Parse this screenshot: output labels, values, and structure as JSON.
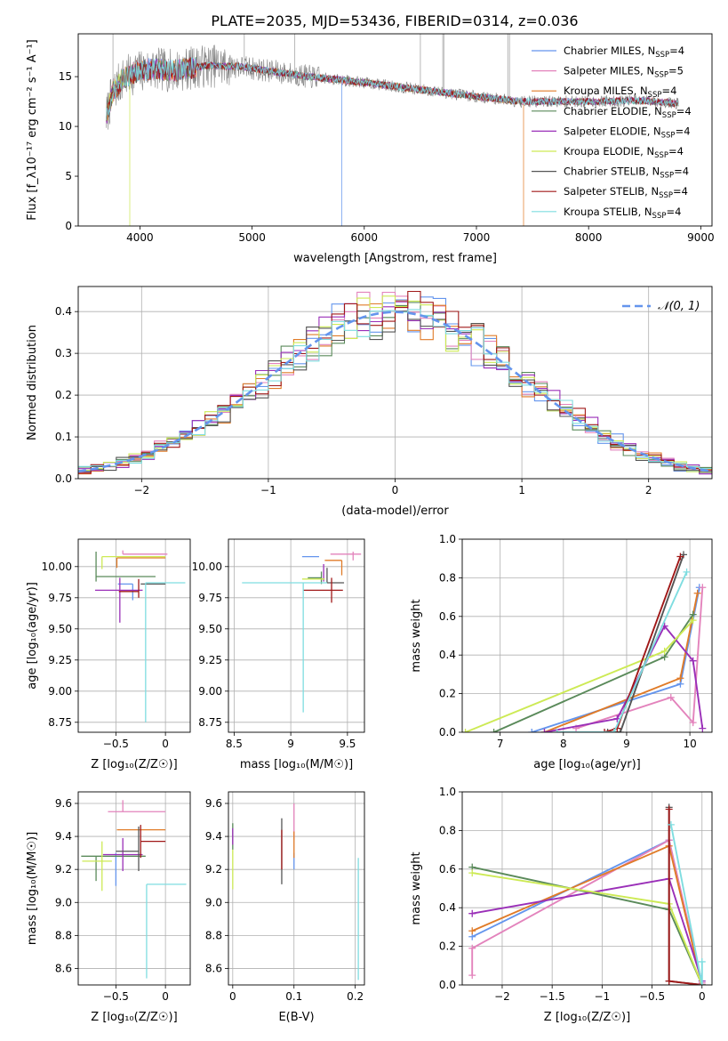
{
  "colors": {
    "chabrier_miles": "#6495ED",
    "salpeter_miles": "#E383BC",
    "kroupa_miles": "#E07B28",
    "chabrier_elodie": "#5A8A5A",
    "salpeter_elodie": "#9A2FB8",
    "kroupa_elodie": "#CDEA55",
    "chabrier_stelib": "#555555",
    "salpeter_stelib": "#A01818",
    "kroupa_stelib": "#7FDDE0",
    "grid": "#b0b0b0",
    "observed": "#808080"
  },
  "figure_title": "PLATE=2035, MJD=53436, FIBERID=0314, z=0.036",
  "chart_data": [
    {
      "id": "spectrum",
      "type": "line",
      "xlabel": "wavelength [Angstrom, rest frame]",
      "ylabel": "Flux [f_λ10⁻¹⁷ erg cm⁻² s⁻¹ A⁻¹]",
      "xlim": [
        3450,
        9100
      ],
      "ylim": [
        0,
        19.3
      ],
      "xticks": [
        4000,
        5000,
        6000,
        7000,
        8000,
        9000
      ],
      "yticks": [
        0,
        5,
        10,
        15
      ],
      "grid": false,
      "legend_position": "top-right",
      "legend": [
        "Chabrier MILES, N_SSP=4",
        "Salpeter MILES, N_SSP=5",
        "Kroupa MILES, N_SSP=4",
        "Chabrier ELODIE, N_SSP=4",
        "Salpeter ELODIE, N_SSP=4",
        "Kroupa ELODIE, N_SSP=4",
        "Chabrier STELIB, N_SSP=4",
        "Salpeter STELIB, N_SSP=4",
        "Kroupa STELIB, N_SSP=4"
      ],
      "data_range": [
        3700,
        8800
      ],
      "continuum": {
        "x": [
          3700,
          3760,
          3850,
          3950,
          4100,
          4300,
          4600,
          4900,
          5200,
          5500,
          6000,
          6500,
          7000,
          7400,
          8000,
          8500,
          8800
        ],
        "y": [
          11.0,
          13.5,
          14.8,
          15.4,
          15.8,
          15.6,
          16.1,
          16.0,
          15.5,
          15.0,
          14.4,
          13.7,
          13.0,
          12.5,
          12.5,
          12.6,
          12.3
        ]
      },
      "dropouts": [
        {
          "x": 3910,
          "series": "kroupa_elodie"
        },
        {
          "x": 5800,
          "series": "chabrier_miles"
        },
        {
          "x": 6800,
          "series": "kroupa_elodie"
        },
        {
          "x": 7420,
          "series": "kroupa_miles"
        }
      ],
      "observed_spikes": [
        3760,
        4930,
        5380,
        6500,
        6700,
        6710,
        7280,
        7295
      ]
    },
    {
      "id": "residuals",
      "type": "histogram",
      "xlabel": "(data-model)/error",
      "ylabel": "Normed distribution",
      "xlim": [
        -2.5,
        2.5
      ],
      "ylim": [
        0,
        0.46
      ],
      "xticks": [
        -2,
        -1,
        0,
        1,
        2
      ],
      "yticks": [
        0.0,
        0.1,
        0.2,
        0.3,
        0.4
      ],
      "grid": true,
      "legend_position": "top-right",
      "legend": [
        "𝒩(0, 1)"
      ],
      "bin_width": 0.1,
      "normal": {
        "mu": 0,
        "sigma": 1
      }
    },
    {
      "id": "age_vs_Z",
      "type": "errorbar",
      "xlabel": "Z [log₁₀(Z/Z☉)]",
      "ylabel": "age  [log₁₀(age/yr)]",
      "xlim": [
        -0.88,
        0.25
      ],
      "ylim": [
        8.67,
        10.22
      ],
      "xticks": [
        -0.5,
        0.0
      ],
      "yticks": [
        8.75,
        9.0,
        9.25,
        9.5,
        9.75,
        10.0
      ],
      "grid": true,
      "points": [
        {
          "series": "chabrier_miles",
          "x": -0.33,
          "xerr": [
            0.15,
            0.0
          ],
          "y": 9.86,
          "yerr": [
            0.13,
            0.0
          ]
        },
        {
          "series": "salpeter_miles",
          "x": -0.43,
          "xerr": [
            0.0,
            0.45
          ],
          "y": 10.1,
          "yerr": [
            0.0,
            0.03
          ]
        },
        {
          "series": "kroupa_miles",
          "x": -0.49,
          "xerr": [
            0.0,
            0.49
          ],
          "y": 10.07,
          "yerr": [
            0.08,
            0.0
          ]
        },
        {
          "series": "chabrier_elodie",
          "x": -0.7,
          "xerr": [
            0.0,
            0.6
          ],
          "y": 9.92,
          "yerr": [
            0.04,
            0.2
          ]
        },
        {
          "series": "salpeter_elodie",
          "x": -0.46,
          "xerr": [
            0.25,
            0.23
          ],
          "y": 9.81,
          "yerr": [
            0.26,
            0.1
          ]
        },
        {
          "series": "kroupa_elodie",
          "x": -0.64,
          "xerr": [
            0.0,
            0.64
          ],
          "y": 10.08,
          "yerr": [
            0.1,
            0.0
          ]
        },
        {
          "series": "chabrier_stelib",
          "x": -0.25,
          "xerr": [
            0.0,
            0.25
          ],
          "y": 9.86,
          "yerr": [
            0.0,
            0.0
          ]
        },
        {
          "series": "salpeter_stelib",
          "x": -0.27,
          "xerr": [
            0.2,
            0.0
          ],
          "y": 9.8,
          "yerr": [
            0.05,
            0.1
          ]
        },
        {
          "series": "kroupa_stelib",
          "x": -0.2,
          "xerr": [
            0.0,
            0.4
          ],
          "y": 9.87,
          "yerr": [
            1.12,
            0.0
          ]
        }
      ]
    },
    {
      "id": "age_vs_mass",
      "type": "errorbar",
      "xlabel": "mass [log₁₀(M/M☉)]",
      "ylabel": "",
      "xlim": [
        8.45,
        9.65
      ],
      "ylim": [
        8.67,
        10.22
      ],
      "xticks": [
        8.5,
        9.0,
        9.5
      ],
      "yticks": [
        8.75,
        9.0,
        9.25,
        9.5,
        9.75,
        10.0
      ],
      "grid": true,
      "points": [
        {
          "series": "chabrier_miles",
          "x": 9.25,
          "xerr": [
            0.15,
            0.0
          ],
          "y": 10.08,
          "yerr": [
            0.0,
            0.0
          ]
        },
        {
          "series": "salpeter_miles",
          "x": 9.55,
          "xerr": [
            0.2,
            0.07
          ],
          "y": 10.1,
          "yerr": [
            0.05,
            0.02
          ]
        },
        {
          "series": "kroupa_miles",
          "x": 9.45,
          "xerr": [
            0.15,
            0.0
          ],
          "y": 10.05,
          "yerr": [
            0.12,
            0.0
          ]
        },
        {
          "series": "chabrier_elodie",
          "x": 9.27,
          "xerr": [
            0.12,
            0.0
          ],
          "y": 9.91,
          "yerr": [
            0.05,
            0.05
          ]
        },
        {
          "series": "salpeter_elodie",
          "x": 9.29,
          "xerr": [
            0.0,
            0.0
          ],
          "y": 9.95,
          "yerr": [
            0.07,
            0.07
          ]
        },
        {
          "series": "kroupa_elodie",
          "x": 9.1,
          "xerr": [
            0.0,
            0.2
          ],
          "y": 9.9,
          "yerr": [
            0.0,
            0.0
          ]
        },
        {
          "series": "chabrier_stelib",
          "x": 9.32,
          "xerr": [
            0.0,
            0.15
          ],
          "y": 9.87,
          "yerr": [
            0.0,
            0.12
          ]
        },
        {
          "series": "salpeter_stelib",
          "x": 9.36,
          "xerr": [
            0.25,
            0.1
          ],
          "y": 9.81,
          "yerr": [
            0.1,
            0.1
          ]
        },
        {
          "series": "kroupa_stelib",
          "x": 9.11,
          "xerr": [
            0.54,
            0.21
          ],
          "y": 9.87,
          "yerr": [
            1.04,
            0.0
          ]
        }
      ]
    },
    {
      "id": "weight_vs_age",
      "type": "line",
      "xlabel": "age  [log₁₀(age/yr)]",
      "ylabel": "mass weight",
      "xlim": [
        6.4,
        10.35
      ],
      "ylim": [
        0,
        1.0
      ],
      "xticks": [
        7,
        8,
        9,
        10
      ],
      "yticks": [
        0.0,
        0.2,
        0.4,
        0.6,
        0.8,
        1.0
      ],
      "grid": true,
      "series": [
        {
          "key": "chabrier_miles",
          "x": [
            7.5,
            9.85,
            10.15
          ],
          "y": [
            0.0,
            0.25,
            0.75
          ]
        },
        {
          "key": "salpeter_miles",
          "x": [
            8.2,
            9.7,
            10.05,
            10.2
          ],
          "y": [
            0.02,
            0.18,
            0.05,
            0.75
          ]
        },
        {
          "key": "kroupa_miles",
          "x": [
            7.7,
            9.85,
            10.12
          ],
          "y": [
            0.0,
            0.28,
            0.72
          ]
        },
        {
          "key": "chabrier_elodie",
          "x": [
            6.9,
            9.6,
            10.05
          ],
          "y": [
            0.0,
            0.39,
            0.61
          ]
        },
        {
          "key": "salpeter_elodie",
          "x": [
            7.7,
            8.85,
            9.6,
            10.05,
            10.2
          ],
          "y": [
            0.0,
            0.07,
            0.55,
            0.37,
            0.02
          ]
        },
        {
          "key": "kroupa_elodie",
          "x": [
            6.45,
            9.6,
            10.05
          ],
          "y": [
            0.0,
            0.42,
            0.58
          ]
        },
        {
          "key": "chabrier_stelib",
          "x": [
            8.7,
            8.9,
            9.9
          ],
          "y": [
            0.0,
            0.0,
            0.92
          ]
        },
        {
          "key": "salpeter_stelib",
          "x": [
            8.65,
            8.85,
            9.85
          ],
          "y": [
            0.0,
            0.02,
            0.91
          ]
        },
        {
          "key": "kroupa_stelib",
          "x": [
            7.9,
            8.8,
            9.95
          ],
          "y": [
            0.0,
            0.0,
            0.83
          ]
        }
      ]
    },
    {
      "id": "mass_vs_Z",
      "type": "errorbar",
      "xlabel": "Z [log₁₀(Z/Z☉)]",
      "ylabel": "mass [log₁₀(M/M☉)]",
      "xlim": [
        -0.88,
        0.25
      ],
      "ylim": [
        8.5,
        9.67
      ],
      "xticks": [
        -0.5,
        0.0
      ],
      "yticks": [
        8.6,
        8.8,
        9.0,
        9.2,
        9.4,
        9.6
      ],
      "grid": true,
      "points": [
        {
          "series": "chabrier_miles",
          "x": -0.5,
          "xerr": [
            0.0,
            0.0
          ],
          "y": 9.25,
          "yerr": [
            0.15,
            0.05
          ]
        },
        {
          "series": "salpeter_miles",
          "x": -0.43,
          "xerr": [
            0.15,
            0.43
          ],
          "y": 9.55,
          "yerr": [
            0.0,
            0.07
          ]
        },
        {
          "series": "kroupa_miles",
          "x": -0.49,
          "xerr": [
            0.0,
            0.49
          ],
          "y": 9.44,
          "yerr": [
            0.0,
            0.0
          ]
        },
        {
          "series": "chabrier_elodie",
          "x": -0.7,
          "xerr": [
            0.15,
            0.5
          ],
          "y": 9.28,
          "yerr": [
            0.15,
            0.0
          ]
        },
        {
          "series": "salpeter_elodie",
          "x": -0.43,
          "xerr": [
            0.2,
            0.2
          ],
          "y": 9.29,
          "yerr": [
            0.1,
            0.1
          ]
        },
        {
          "series": "kroupa_elodie",
          "x": -0.64,
          "xerr": [
            0.2,
            0.1
          ],
          "y": 9.25,
          "yerr": [
            0.18,
            0.12
          ]
        },
        {
          "series": "chabrier_stelib",
          "x": -0.27,
          "xerr": [
            0.23,
            0.0
          ],
          "y": 9.31,
          "yerr": [
            0.12,
            0.15
          ]
        },
        {
          "series": "salpeter_stelib",
          "x": -0.25,
          "xerr": [
            0.0,
            0.25
          ],
          "y": 9.37,
          "yerr": [
            0.1,
            0.1
          ]
        },
        {
          "series": "kroupa_stelib",
          "x": -0.19,
          "xerr": [
            0.0,
            0.4
          ],
          "y": 9.11,
          "yerr": [
            0.57,
            0.0
          ]
        }
      ]
    },
    {
      "id": "mass_vs_ebv",
      "type": "errorbar",
      "xlabel": "E(B-V)",
      "ylabel": "",
      "xlim": [
        -0.007,
        0.215
      ],
      "ylim": [
        8.5,
        9.67
      ],
      "xticks": [
        0.0,
        0.1,
        0.2
      ],
      "yticks": [
        8.6,
        8.8,
        9.0,
        9.2,
        9.4,
        9.6
      ],
      "grid": true,
      "points": [
        {
          "series": "chabrier_miles",
          "x": 0.1,
          "xerr": [
            0,
            0
          ],
          "y": 9.25,
          "yerr": [
            0.05,
            0.05
          ]
        },
        {
          "series": "salpeter_miles",
          "x": 0.1,
          "xerr": [
            0,
            0
          ],
          "y": 9.5,
          "yerr": [
            0.12,
            0.1
          ]
        },
        {
          "series": "kroupa_miles",
          "x": 0.1,
          "xerr": [
            0,
            0
          ],
          "y": 9.35,
          "yerr": [
            0.08,
            0.08
          ]
        },
        {
          "series": "chabrier_elodie",
          "x": 0.0,
          "xerr": [
            0,
            0
          ],
          "y": 9.4,
          "yerr": [
            0.08,
            0.08
          ]
        },
        {
          "series": "salpeter_elodie",
          "x": 0.0,
          "xerr": [
            0,
            0
          ],
          "y": 9.4,
          "yerr": [
            0.05,
            0.05
          ]
        },
        {
          "series": "kroupa_elodie",
          "x": 0.0,
          "xerr": [
            0,
            0
          ],
          "y": 9.2,
          "yerr": [
            0.12,
            0.12
          ]
        },
        {
          "series": "chabrier_stelib",
          "x": 0.08,
          "xerr": [
            0,
            0
          ],
          "y": 9.31,
          "yerr": [
            0.2,
            0.2
          ]
        },
        {
          "series": "salpeter_stelib",
          "x": 0.08,
          "xerr": [
            0,
            0
          ],
          "y": 9.32,
          "yerr": [
            0.12,
            0.12
          ]
        },
        {
          "series": "kroupa_stelib",
          "x": 0.205,
          "xerr": [
            0,
            0
          ],
          "y": 8.9,
          "yerr": [
            0.37,
            0.37
          ]
        }
      ]
    },
    {
      "id": "weight_vs_Z",
      "type": "line",
      "xlabel": "Z [log₁₀(Z/Z☉)]",
      "ylabel": "mass weight",
      "xlim": [
        -2.4,
        0.1
      ],
      "ylim": [
        0,
        1.0
      ],
      "xticks": [
        -2.0,
        -1.5,
        -1.0,
        -0.5,
        0.0
      ],
      "yticks": [
        0.0,
        0.2,
        0.4,
        0.6,
        0.8,
        1.0
      ],
      "grid": true,
      "series": [
        {
          "key": "chabrier_miles",
          "x": [
            -2.3,
            -0.33,
            0.0
          ],
          "y": [
            0.25,
            0.75,
            0.0
          ]
        },
        {
          "key": "salpeter_miles",
          "x": [
            -2.3,
            -2.3,
            -0.33,
            0.0
          ],
          "y": [
            0.05,
            0.19,
            0.75,
            0.01
          ]
        },
        {
          "key": "kroupa_miles",
          "x": [
            -2.3,
            -0.33,
            0.0
          ],
          "y": [
            0.28,
            0.72,
            0.0
          ]
        },
        {
          "key": "chabrier_elodie",
          "x": [
            -2.3,
            -0.33,
            0.0
          ],
          "y": [
            0.61,
            0.39,
            0.0
          ]
        },
        {
          "key": "salpeter_elodie",
          "x": [
            -2.3,
            -0.33,
            0.0
          ],
          "y": [
            0.37,
            0.55,
            0.02
          ]
        },
        {
          "key": "kroupa_elodie",
          "x": [
            -2.3,
            -0.33,
            0.0
          ],
          "y": [
            0.58,
            0.42,
            0.0
          ]
        },
        {
          "key": "chabrier_stelib",
          "x": [
            -0.33,
            -0.33,
            0.0
          ],
          "y": [
            0.92,
            0.02,
            0.0
          ]
        },
        {
          "key": "salpeter_stelib",
          "x": [
            -0.33,
            -0.33,
            0.0
          ],
          "y": [
            0.91,
            0.02,
            0.0
          ]
        },
        {
          "key": "kroupa_stelib",
          "x": [
            -0.31,
            0.0,
            0.0
          ],
          "y": [
            0.83,
            0.0,
            0.12
          ]
        }
      ]
    }
  ]
}
